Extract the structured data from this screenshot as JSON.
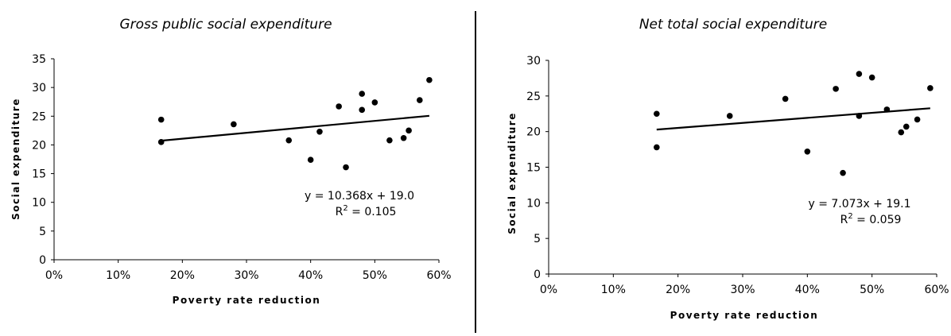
{
  "chart_data": [
    {
      "type": "scatter",
      "title": "Gross public social expenditure",
      "xlabel": "Poverty rate reduction",
      "ylabel": "Social expenditure",
      "xlim": [
        0,
        0.6
      ],
      "ylim": [
        0,
        35
      ],
      "xticks": [
        0,
        0.1,
        0.2,
        0.3,
        0.4,
        0.5,
        0.6
      ],
      "xtick_labels": [
        "0%",
        "10%",
        "20%",
        "30%",
        "40%",
        "50%",
        "60%"
      ],
      "yticks": [
        0,
        5,
        10,
        15,
        20,
        25,
        30,
        35
      ],
      "ytick_labels": [
        "0",
        "5",
        "10",
        "15",
        "20",
        "25",
        "30",
        "35"
      ],
      "points": [
        {
          "x": 0.167,
          "y": 24.4
        },
        {
          "x": 0.167,
          "y": 20.5
        },
        {
          "x": 0.28,
          "y": 23.6
        },
        {
          "x": 0.366,
          "y": 20.8
        },
        {
          "x": 0.4,
          "y": 17.4
        },
        {
          "x": 0.414,
          "y": 22.3
        },
        {
          "x": 0.444,
          "y": 26.7
        },
        {
          "x": 0.455,
          "y": 16.1
        },
        {
          "x": 0.48,
          "y": 28.9
        },
        {
          "x": 0.48,
          "y": 26.1
        },
        {
          "x": 0.5,
          "y": 27.4
        },
        {
          "x": 0.523,
          "y": 20.8
        },
        {
          "x": 0.545,
          "y": 21.2
        },
        {
          "x": 0.553,
          "y": 22.5
        },
        {
          "x": 0.57,
          "y": 27.8
        },
        {
          "x": 0.585,
          "y": 31.3
        }
      ],
      "trendline": {
        "slope": 10.368,
        "intercept": 19.0,
        "x_range": [
          0.167,
          0.585
        ]
      },
      "equation": "y = 10.368x + 19.0",
      "r2_prefix": "R",
      "r2_exp": "2",
      "r2_value": " = 0.105",
      "grid": false
    },
    {
      "type": "scatter",
      "title": "Net total social expenditure",
      "xlabel": "Poverty rate reduction",
      "ylabel": "Social expenditure",
      "xlim": [
        0,
        0.6
      ],
      "ylim": [
        0,
        30
      ],
      "xticks": [
        0,
        0.1,
        0.2,
        0.3,
        0.4,
        0.5,
        0.6
      ],
      "xtick_labels": [
        "0%",
        "10%",
        "20%",
        "30%",
        "40%",
        "50%",
        "60%"
      ],
      "yticks": [
        0,
        5,
        10,
        15,
        20,
        25,
        30
      ],
      "ytick_labels": [
        "0",
        "5",
        "10",
        "15",
        "20",
        "25",
        "30"
      ],
      "points": [
        {
          "x": 0.167,
          "y": 22.5
        },
        {
          "x": 0.167,
          "y": 17.8
        },
        {
          "x": 0.28,
          "y": 22.2
        },
        {
          "x": 0.366,
          "y": 24.6
        },
        {
          "x": 0.4,
          "y": 17.2
        },
        {
          "x": 0.444,
          "y": 26.0
        },
        {
          "x": 0.455,
          "y": 14.2
        },
        {
          "x": 0.48,
          "y": 28.1
        },
        {
          "x": 0.48,
          "y": 22.2
        },
        {
          "x": 0.5,
          "y": 27.6
        },
        {
          "x": 0.523,
          "y": 23.1
        },
        {
          "x": 0.545,
          "y": 19.9
        },
        {
          "x": 0.553,
          "y": 20.7
        },
        {
          "x": 0.57,
          "y": 21.7
        },
        {
          "x": 0.59,
          "y": 26.1
        }
      ],
      "trendline": {
        "slope": 7.073,
        "intercept": 19.1,
        "x_range": [
          0.167,
          0.59
        ]
      },
      "equation": "y = 7.073x + 19.1",
      "r2_prefix": "R",
      "r2_exp": "2",
      "r2_value": " = 0.059",
      "grid": false
    }
  ]
}
